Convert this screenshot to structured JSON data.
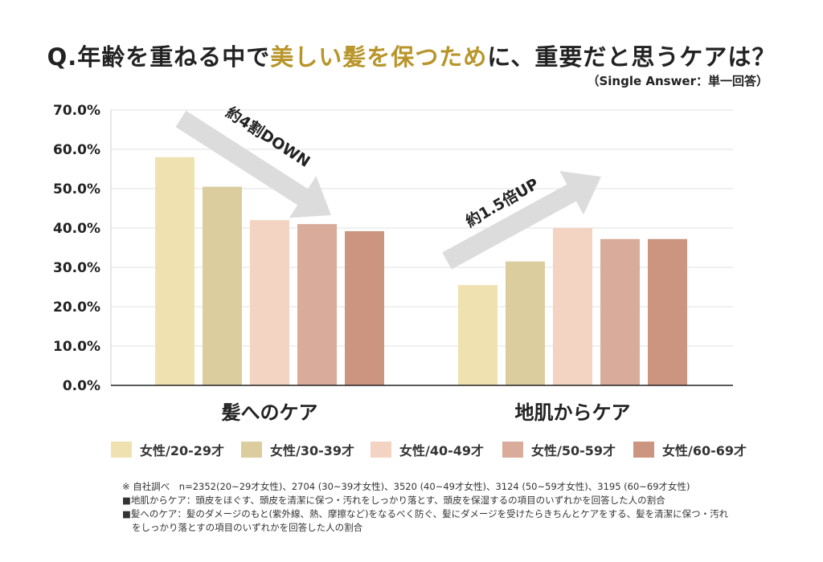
{
  "title": {
    "prefix": "Q.年齢を重ねる中で",
    "highlight": "美しい髪を保つため",
    "suffix": "に、重要だと思うケアは？"
  },
  "subtitle": "（Single Answer：単一回答）",
  "colors": {
    "highlight": "#b8952a",
    "series": [
      "#efe2b0",
      "#dccd9f",
      "#f3d3c1",
      "#d9ab9a",
      "#cc9580"
    ],
    "arrow": "#dcdcdc"
  },
  "annotations": {
    "down": "約4割DOWN",
    "up": "約1.5倍UP"
  },
  "chart_data": {
    "type": "bar",
    "categories": [
      "髪へのケア",
      "地肌からケア"
    ],
    "series": [
      {
        "name": "女性/20-29才",
        "values": [
          58.0,
          25.5
        ]
      },
      {
        "name": "女性/30-39才",
        "values": [
          50.5,
          31.5
        ]
      },
      {
        "name": "女性/40-49才",
        "values": [
          42.0,
          40.0
        ]
      },
      {
        "name": "女性/50-59才",
        "values": [
          41.0,
          37.2
        ]
      },
      {
        "name": "女性/60-69才",
        "values": [
          39.2,
          37.2
        ]
      }
    ],
    "ylim": [
      0,
      70
    ],
    "yticks": [
      "0.0%",
      "10.0%",
      "20.0%",
      "30.0%",
      "40.0%",
      "50.0%",
      "60.0%",
      "70.0%"
    ],
    "grid": true,
    "legend": "bottom"
  },
  "notes": [
    "※ 自社調べ　n=2352(20~29才女性)、2704 (30~39才女性)、3520 (40~49才女性)、3124 (50~59才女性)、3195 (60~69才女性)",
    "■地肌からケア：頭皮をほぐす、頭皮を清潔に保つ・汚れをしっかり落とす、頭皮を保湿するの項目のいずれかを回答した人の割合",
    "■髪へのケア：髪のダメージのもと(紫外線、熱、摩擦など)をなるべく防ぐ、髪にダメージを受けたらきちんとケアをする、髪を清潔に保つ・汚れ",
    "をしっかり落とすの項目のいずれかを回答した人の割合"
  ]
}
